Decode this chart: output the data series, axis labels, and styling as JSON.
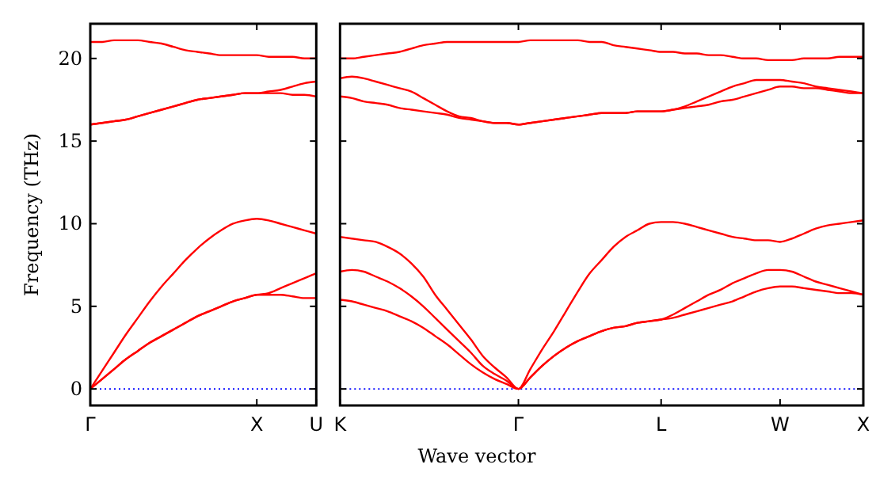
{
  "chart_data": [
    {
      "type": "line",
      "ylabel": "Frequency (THz)",
      "categories": [
        "Γ",
        null,
        null,
        null,
        null,
        null,
        null,
        null,
        null,
        null,
        null,
        null,
        null,
        null,
        "X",
        null,
        null,
        null,
        null,
        "U"
      ],
      "ylim": [
        -1,
        22.1
      ],
      "yticks": [
        0,
        5,
        10,
        15,
        20
      ],
      "line_style": "solid",
      "ref_lines": [
        {
          "axis": "y",
          "value": 0,
          "color": "#0000ff",
          "line_style": "dotted"
        }
      ],
      "series": [
        {
          "color": "#ff0000",
          "values": [
            0,
            0.6,
            1.2,
            1.8,
            2.3,
            2.8,
            3.2,
            3.6,
            4.0,
            4.4,
            4.7,
            5.0,
            5.3,
            5.5,
            5.7,
            5.7,
            5.7,
            5.6,
            5.5,
            5.5
          ]
        },
        {
          "color": "#ff0000",
          "values": [
            0,
            0.6,
            1.2,
            1.8,
            2.3,
            2.8,
            3.2,
            3.6,
            4.0,
            4.4,
            4.7,
            5.0,
            5.3,
            5.5,
            5.7,
            5.8,
            6.1,
            6.4,
            6.7,
            7.0
          ]
        },
        {
          "color": "#ff0000",
          "values": [
            0,
            1.1,
            2.2,
            3.3,
            4.3,
            5.3,
            6.2,
            7.0,
            7.8,
            8.5,
            9.1,
            9.6,
            10.0,
            10.2,
            10.3,
            10.2,
            10.0,
            9.8,
            9.6,
            9.4
          ]
        },
        {
          "color": "#ff0000",
          "values": [
            16.0,
            16.1,
            16.2,
            16.3,
            16.5,
            16.7,
            16.9,
            17.1,
            17.3,
            17.5,
            17.6,
            17.7,
            17.8,
            17.9,
            17.9,
            17.9,
            17.9,
            17.8,
            17.8,
            17.7
          ]
        },
        {
          "color": "#ff0000",
          "values": [
            16.0,
            16.1,
            16.2,
            16.3,
            16.5,
            16.7,
            16.9,
            17.1,
            17.3,
            17.5,
            17.6,
            17.7,
            17.8,
            17.9,
            17.9,
            18.0,
            18.1,
            18.3,
            18.5,
            18.6
          ]
        },
        {
          "color": "#ff0000",
          "values": [
            21.0,
            21.0,
            21.1,
            21.1,
            21.1,
            21.0,
            20.9,
            20.7,
            20.5,
            20.4,
            20.3,
            20.2,
            20.2,
            20.2,
            20.2,
            20.1,
            20.1,
            20.1,
            20.0,
            20.0
          ]
        }
      ]
    },
    {
      "type": "line",
      "xlabel": "Wave vector",
      "categories": [
        "K",
        null,
        null,
        null,
        null,
        null,
        null,
        null,
        null,
        null,
        null,
        null,
        null,
        null,
        null,
        "Γ",
        null,
        null,
        null,
        null,
        null,
        null,
        null,
        null,
        null,
        null,
        null,
        "L",
        null,
        null,
        null,
        null,
        null,
        null,
        null,
        null,
        null,
        "W",
        null,
        null,
        null,
        null,
        null,
        null,
        "X"
      ],
      "ylim": [
        -1,
        22.1
      ],
      "yticks": [
        {
          "value": 0,
          "label": null
        },
        {
          "value": 5,
          "label": null
        },
        {
          "value": 10,
          "label": null
        },
        {
          "value": 15,
          "label": null
        },
        {
          "value": 20,
          "label": null
        }
      ],
      "tick_labels": "x",
      "line_style": "solid",
      "ref_lines": [
        {
          "axis": "y",
          "value": 0,
          "color": "#0000ff",
          "line_style": "dotted"
        }
      ],
      "series": [
        {
          "color": "#ff0000",
          "values": [
            5.4,
            5.3,
            5.1,
            4.9,
            4.7,
            4.4,
            4.1,
            3.7,
            3.2,
            2.7,
            2.1,
            1.5,
            1.0,
            0.6,
            0.3,
            0,
            0.7,
            1.4,
            2.0,
            2.5,
            2.9,
            3.2,
            3.5,
            3.7,
            3.8,
            4.0,
            4.1,
            4.2,
            4.3,
            4.5,
            4.7,
            4.9,
            5.1,
            5.3,
            5.6,
            5.9,
            6.1,
            6.2,
            6.2,
            6.1,
            6.0,
            5.9,
            5.8,
            5.8,
            5.7
          ]
        },
        {
          "color": "#ff0000",
          "values": [
            7.1,
            7.2,
            7.1,
            6.8,
            6.5,
            6.1,
            5.6,
            5.0,
            4.3,
            3.6,
            2.9,
            2.2,
            1.4,
            0.9,
            0.5,
            0,
            0.7,
            1.4,
            2.0,
            2.5,
            2.9,
            3.2,
            3.5,
            3.7,
            3.8,
            4.0,
            4.1,
            4.2,
            4.5,
            4.9,
            5.3,
            5.7,
            6.0,
            6.4,
            6.7,
            7.0,
            7.2,
            7.2,
            7.1,
            6.8,
            6.5,
            6.3,
            6.1,
            5.9,
            5.7
          ]
        },
        {
          "color": "#ff0000",
          "values": [
            9.2,
            9.1,
            9.0,
            8.9,
            8.6,
            8.2,
            7.6,
            6.8,
            5.7,
            4.8,
            3.9,
            3.0,
            2.0,
            1.3,
            0.7,
            0,
            1.2,
            2.4,
            3.5,
            4.7,
            5.9,
            7.0,
            7.8,
            8.6,
            9.2,
            9.6,
            10.0,
            10.1,
            10.1,
            10.0,
            9.8,
            9.6,
            9.4,
            9.2,
            9.1,
            9.0,
            9.0,
            8.9,
            9.1,
            9.4,
            9.7,
            9.9,
            10.0,
            10.1,
            10.2
          ]
        },
        {
          "color": "#ff0000",
          "values": [
            17.7,
            17.6,
            17.4,
            17.3,
            17.2,
            17.0,
            16.9,
            16.8,
            16.7,
            16.6,
            16.4,
            16.3,
            16.2,
            16.1,
            16.1,
            16.0,
            16.1,
            16.2,
            16.3,
            16.4,
            16.5,
            16.6,
            16.7,
            16.7,
            16.7,
            16.8,
            16.8,
            16.8,
            16.9,
            17.0,
            17.1,
            17.2,
            17.4,
            17.5,
            17.7,
            17.9,
            18.1,
            18.3,
            18.3,
            18.2,
            18.2,
            18.1,
            18.0,
            17.9,
            17.9
          ]
        },
        {
          "color": "#ff0000",
          "values": [
            18.8,
            18.9,
            18.8,
            18.6,
            18.4,
            18.2,
            18.0,
            17.6,
            17.2,
            16.8,
            16.5,
            16.4,
            16.2,
            16.1,
            16.1,
            16.0,
            16.1,
            16.2,
            16.3,
            16.4,
            16.5,
            16.6,
            16.7,
            16.7,
            16.7,
            16.8,
            16.8,
            16.8,
            16.9,
            17.1,
            17.4,
            17.7,
            18.0,
            18.3,
            18.5,
            18.7,
            18.7,
            18.7,
            18.6,
            18.5,
            18.3,
            18.2,
            18.1,
            18.0,
            17.9
          ]
        },
        {
          "color": "#ff0000",
          "values": [
            20.0,
            20.0,
            20.1,
            20.2,
            20.3,
            20.4,
            20.6,
            20.8,
            20.9,
            21.0,
            21.0,
            21.0,
            21.0,
            21.0,
            21.0,
            21.0,
            21.1,
            21.1,
            21.1,
            21.1,
            21.1,
            21.0,
            21.0,
            20.8,
            20.7,
            20.6,
            20.5,
            20.4,
            20.4,
            20.3,
            20.3,
            20.2,
            20.2,
            20.1,
            20.0,
            20.0,
            19.9,
            19.9,
            19.9,
            20.0,
            20.0,
            20.0,
            20.1,
            20.1,
            20.1
          ]
        }
      ]
    }
  ]
}
